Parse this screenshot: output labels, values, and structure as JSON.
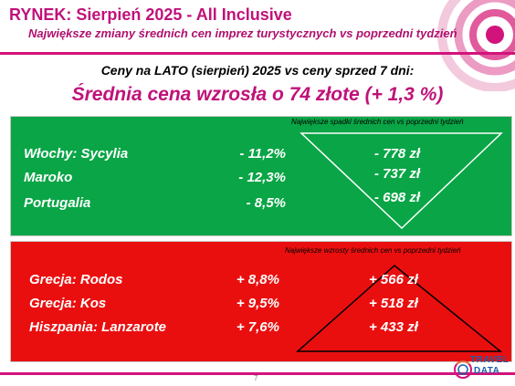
{
  "header": {
    "title": "RYNEK: Sierpień 2025 - All Inclusive",
    "subtitle": "Największe zmiany średnich cen imprez turystycznych vs poprzedni tydzień"
  },
  "summary": {
    "comparison": "Ceny na LATO (sierpień) 2025 vs ceny sprzed 7 dni:",
    "headline": "Średnia cena wzrosła o 74 złote (+ 1,3 %)"
  },
  "decreases": {
    "note": "Największe spadki średnich cen vs poprzedni tydzień",
    "rows": [
      {
        "name": "Włochy: Sycylia",
        "pct": "-  11,2%",
        "amount": "- 778 zł"
      },
      {
        "name": "Maroko",
        "pct": "-  12,3%",
        "amount": "- 737 zł"
      },
      {
        "name": "Portugalia",
        "pct": "-  8,5%",
        "amount": "- 698 zł"
      }
    ]
  },
  "increases": {
    "note": "Największe wzrosty średnich cen vs poprzedni tydzień",
    "rows": [
      {
        "name": "Grecja: Rodos",
        "pct": "+ 8,8%",
        "amount": "+ 566 zł"
      },
      {
        "name": "Grecja: Kos",
        "pct": "+ 9,5%",
        "amount": "+ 518 zł"
      },
      {
        "name": "Hiszpania: Lanzarote",
        "pct": "+ 7,6%",
        "amount": "+ 433 zł"
      }
    ]
  },
  "footer": {
    "page_number": "7",
    "logo_top": "TRAVEL",
    "logo_bottom": "DATA"
  },
  "colors": {
    "accent": "#c0127a",
    "green": "#09a546",
    "red": "#ea0f0f",
    "logo_blue": "#1d5fa8"
  }
}
